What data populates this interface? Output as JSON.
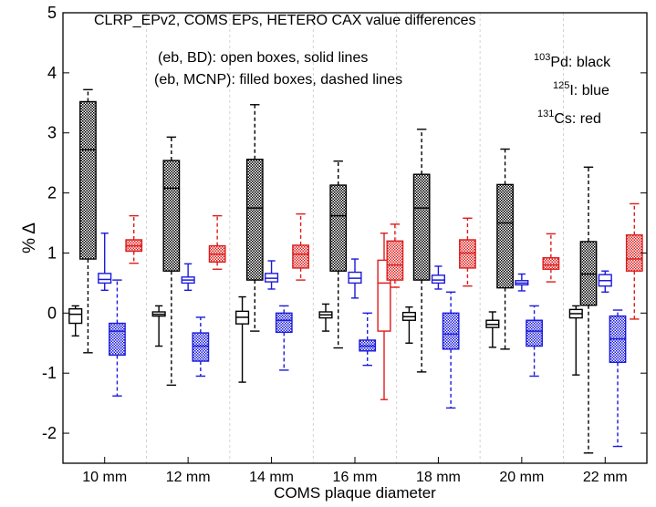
{
  "chart_data": {
    "type": "box",
    "title": "CLRP_EPv2, COMS EPs, HETERO CAX value differences",
    "annotations": {
      "open_boxes": "(eb, BD): open boxes, solid lines",
      "filled_boxes": "(eb, MCNP): filled boxes, dashed lines",
      "pd_sup": "103",
      "pd_label": "Pd: black",
      "i_sup": "125",
      "i_label": "I: blue",
      "cs_sup": "131",
      "cs_label": "Cs: red"
    },
    "xlabel": "COMS plaque diameter",
    "ylabel": "% Δ",
    "ylim": [
      -2.5,
      5
    ],
    "yticks": [
      "-2",
      "-1",
      "0",
      "1",
      "2",
      "3",
      "4",
      "5"
    ],
    "categories": [
      "10 mm",
      "12 mm",
      "14 mm",
      "16 mm",
      "18 mm",
      "20 mm",
      "22 mm"
    ],
    "colors": {
      "Pd": "#000000",
      "I": "#1a1adc",
      "Cs": "#dd1c1c"
    },
    "series": [
      {
        "name": "Pd BD",
        "isotope": "Pd",
        "style": "open",
        "offset": -0.35,
        "boxes": [
          [
            -0.38,
            -0.17,
            -0.02,
            0.07,
            0.12
          ],
          [
            -0.55,
            -0.05,
            -0.02,
            0.02,
            0.12
          ],
          [
            -1.15,
            -0.18,
            -0.07,
            0.03,
            0.27
          ],
          [
            -0.3,
            -0.08,
            -0.03,
            0.02,
            0.15
          ],
          [
            -0.5,
            -0.12,
            -0.06,
            0.01,
            0.1
          ],
          [
            -0.57,
            -0.24,
            -0.19,
            -0.12,
            0.02
          ],
          [
            -1.03,
            -0.08,
            -0.01,
            0.06,
            0.12
          ]
        ]
      },
      {
        "name": "Pd MCNP",
        "isotope": "Pd",
        "style": "filled",
        "offset": -0.2,
        "boxes": [
          [
            -0.66,
            0.9,
            2.72,
            3.52,
            3.72
          ],
          [
            -1.2,
            0.7,
            2.08,
            2.54,
            2.93
          ],
          [
            -0.3,
            0.55,
            1.75,
            2.56,
            3.47
          ],
          [
            -0.58,
            0.7,
            1.62,
            2.13,
            2.53
          ],
          [
            -0.98,
            0.55,
            1.75,
            2.31,
            3.06
          ],
          [
            -0.6,
            0.42,
            1.5,
            2.14,
            2.73
          ],
          [
            -2.33,
            0.13,
            0.65,
            1.19,
            2.43
          ]
        ]
      },
      {
        "name": "I BD",
        "isotope": "I",
        "style": "open",
        "offset": 0.0,
        "boxes": [
          [
            0.38,
            0.5,
            0.56,
            0.66,
            1.33
          ],
          [
            0.38,
            0.5,
            0.55,
            0.6,
            0.82
          ],
          [
            0.4,
            0.52,
            0.58,
            0.66,
            0.87
          ],
          [
            0.25,
            0.5,
            0.58,
            0.68,
            0.9
          ],
          [
            0.4,
            0.5,
            0.55,
            0.63,
            0.78
          ],
          [
            0.37,
            0.47,
            0.5,
            0.54,
            0.65
          ],
          [
            0.35,
            0.45,
            0.54,
            0.64,
            0.7
          ]
        ]
      },
      {
        "name": "I MCNP",
        "isotope": "I",
        "style": "filled",
        "offset": 0.15,
        "boxes": [
          [
            -1.38,
            -0.7,
            -0.3,
            -0.17,
            0.55
          ],
          [
            -1.05,
            -0.8,
            -0.55,
            -0.33,
            -0.07
          ],
          [
            -0.95,
            -0.32,
            -0.12,
            0.0,
            0.12
          ],
          [
            -0.87,
            -0.63,
            -0.55,
            -0.45,
            0.0
          ],
          [
            -1.58,
            -0.6,
            -0.35,
            0.0,
            0.35
          ],
          [
            -1.05,
            -0.55,
            -0.3,
            -0.12,
            0.12
          ],
          [
            -2.22,
            -0.82,
            -0.43,
            -0.05,
            0.05
          ]
        ]
      },
      {
        "name": "Cs BD",
        "isotope": "Cs",
        "style": "open",
        "offset": 0.35,
        "indices": [
          3
        ],
        "boxes": [
          [
            -1.44,
            -0.3,
            0.5,
            0.88,
            1.33
          ]
        ]
      },
      {
        "name": "Cs MCNP",
        "isotope": "Cs",
        "style": "filled",
        "offset": 0.35,
        "indices": [
          0,
          1,
          2,
          3,
          4,
          5,
          6
        ],
        "offsets": [
          0.35,
          0.35,
          0.35,
          0.48,
          0.35,
          0.35,
          0.35
        ],
        "boxes": [
          [
            0.83,
            1.03,
            1.12,
            1.22,
            1.62
          ],
          [
            0.73,
            0.85,
            0.98,
            1.12,
            1.62
          ],
          [
            0.55,
            0.75,
            0.98,
            1.13,
            1.65
          ],
          [
            0.43,
            0.55,
            0.8,
            1.2,
            1.48
          ],
          [
            0.45,
            0.75,
            1.0,
            1.22,
            1.58
          ],
          [
            0.52,
            0.73,
            0.8,
            0.92,
            1.32
          ],
          [
            -0.1,
            0.7,
            0.9,
            1.3,
            1.82
          ]
        ]
      }
    ]
  }
}
